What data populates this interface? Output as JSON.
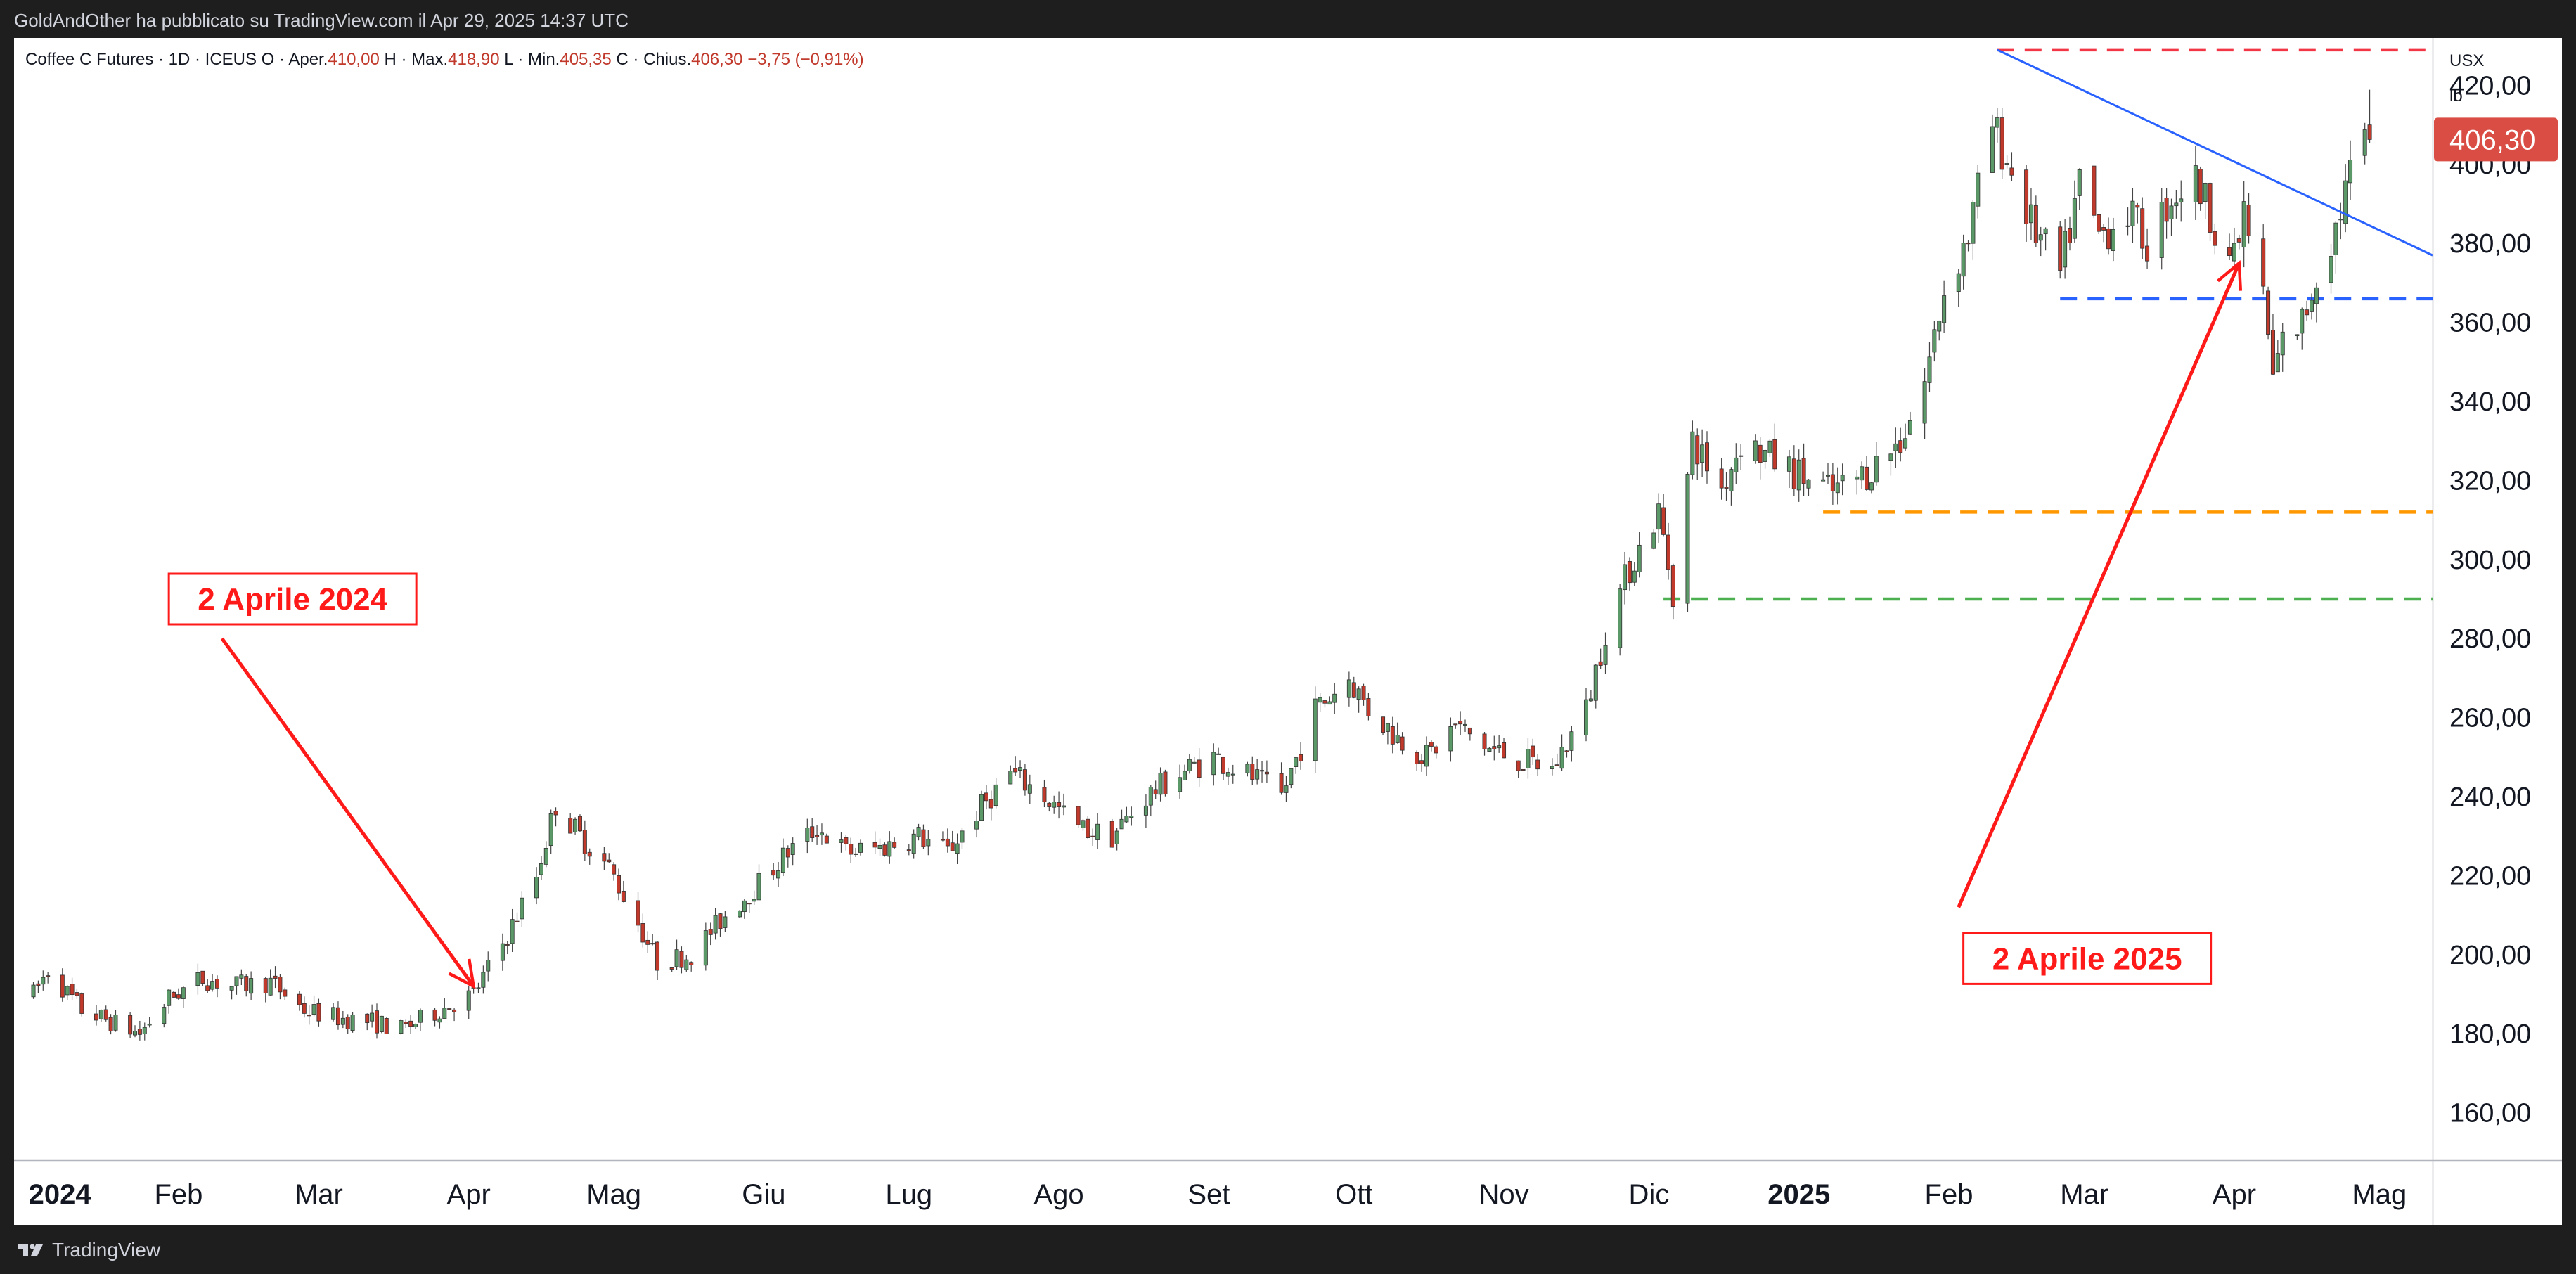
{
  "header": {
    "published_text": "GoldAndOther ha pubblicato su TradingView.com il Apr 29, 2025 14:37 UTC"
  },
  "footer": {
    "brand": "TradingView",
    "logo_icon": "tradingview-logo-icon"
  },
  "chart_data": {
    "type": "candlestick",
    "title": "Coffee C Futures · 1D · ICEUS",
    "ohlc": {
      "open_label": "O",
      "open_name": "Aper.",
      "open": "410,00",
      "high_label": "H",
      "high_name": "Max.",
      "high": "418,90",
      "low_label": "L",
      "low_name": "Min.",
      "low": "405,35",
      "close_label": "C",
      "close_name": "Chius.",
      "close": "406,30",
      "change": "−3,75 (−0,91%)"
    },
    "currency": "USX",
    "unit": "lb",
    "last_price": "406,30",
    "ylim": [
      148,
      432
    ],
    "y_ticks": [
      "160,00",
      "180,00",
      "200,00",
      "220,00",
      "240,00",
      "260,00",
      "280,00",
      "300,00",
      "320,00",
      "340,00",
      "360,00",
      "380,00",
      "400,00",
      "420,00"
    ],
    "x_labels": [
      {
        "label": "2024",
        "date": "2024-01-01",
        "bold": true
      },
      {
        "label": "Feb",
        "date": "2024-02-01"
      },
      {
        "label": "Mar",
        "date": "2024-03-01"
      },
      {
        "label": "Apr",
        "date": "2024-04-01"
      },
      {
        "label": "Mag",
        "date": "2024-05-01"
      },
      {
        "label": "Giu",
        "date": "2024-06-01"
      },
      {
        "label": "Lug",
        "date": "2024-07-01"
      },
      {
        "label": "Ago",
        "date": "2024-08-01"
      },
      {
        "label": "Set",
        "date": "2024-09-01"
      },
      {
        "label": "Ott",
        "date": "2024-10-01"
      },
      {
        "label": "Nov",
        "date": "2024-11-01"
      },
      {
        "label": "Dic",
        "date": "2024-12-01"
      },
      {
        "label": "2025",
        "date": "2025-01-01",
        "bold": true
      },
      {
        "label": "Feb",
        "date": "2025-02-01"
      },
      {
        "label": "Mar",
        "date": "2025-03-01"
      },
      {
        "label": "Apr",
        "date": "2025-04-01"
      },
      {
        "label": "Mag",
        "date": "2025-05-01"
      }
    ],
    "x_range": [
      "2023-12-29",
      "2025-05-12"
    ],
    "candle_colors": {
      "up": "#5b9a68",
      "down": "#c0392b"
    },
    "price_path": [
      [
        "2024-01-02",
        190
      ],
      [
        "2024-01-05",
        196
      ],
      [
        "2024-01-12",
        186
      ],
      [
        "2024-01-18",
        183
      ],
      [
        "2024-01-24",
        180
      ],
      [
        "2024-01-30",
        189
      ],
      [
        "2024-02-06",
        194
      ],
      [
        "2024-02-12",
        192
      ],
      [
        "2024-02-20",
        193
      ],
      [
        "2024-02-27",
        186
      ],
      [
        "2024-03-05",
        184
      ],
      [
        "2024-03-12",
        183
      ],
      [
        "2024-03-18",
        181
      ],
      [
        "2024-03-26",
        186
      ],
      [
        "2024-04-02",
        190
      ],
      [
        "2024-04-09",
        205
      ],
      [
        "2024-04-15",
        220
      ],
      [
        "2024-04-19",
        238
      ],
      [
        "2024-04-24",
        230
      ],
      [
        "2024-04-30",
        222
      ],
      [
        "2024-05-06",
        208
      ],
      [
        "2024-05-10",
        198
      ],
      [
        "2024-05-17",
        200
      ],
      [
        "2024-05-24",
        210
      ],
      [
        "2024-05-31",
        218
      ],
      [
        "2024-06-06",
        226
      ],
      [
        "2024-06-12",
        232
      ],
      [
        "2024-06-18",
        226
      ],
      [
        "2024-06-25",
        227
      ],
      [
        "2024-07-03",
        230
      ],
      [
        "2024-07-09",
        226
      ],
      [
        "2024-07-15",
        236
      ],
      [
        "2024-07-22",
        246
      ],
      [
        "2024-07-29",
        240
      ],
      [
        "2024-08-05",
        232
      ],
      [
        "2024-08-12",
        230
      ],
      [
        "2024-08-19",
        240
      ],
      [
        "2024-08-26",
        246
      ],
      [
        "2024-09-02",
        250
      ],
      [
        "2024-09-10",
        245
      ],
      [
        "2024-09-16",
        240
      ],
      [
        "2024-09-23",
        262
      ],
      [
        "2024-09-30",
        270
      ],
      [
        "2024-10-04",
        262
      ],
      [
        "2024-10-10",
        255
      ],
      [
        "2024-10-16",
        250
      ],
      [
        "2024-10-22",
        258
      ],
      [
        "2024-10-29",
        252
      ],
      [
        "2024-11-05",
        249
      ],
      [
        "2024-11-11",
        247
      ],
      [
        "2024-11-18",
        262
      ],
      [
        "2024-11-22",
        282
      ],
      [
        "2024-11-27",
        298
      ],
      [
        "2024-12-03",
        312
      ],
      [
        "2024-12-06",
        292
      ],
      [
        "2024-12-10",
        330
      ],
      [
        "2024-12-16",
        318
      ],
      [
        "2024-12-20",
        330
      ],
      [
        "2024-12-27",
        325
      ],
      [
        "2025-01-03",
        320
      ],
      [
        "2025-01-08",
        317
      ],
      [
        "2025-01-15",
        322
      ],
      [
        "2025-01-22",
        330
      ],
      [
        "2025-01-27",
        345
      ],
      [
        "2025-01-31",
        368
      ],
      [
        "2025-02-05",
        382
      ],
      [
        "2025-02-10",
        410
      ],
      [
        "2025-02-14",
        398
      ],
      [
        "2025-02-18",
        385
      ],
      [
        "2025-02-24",
        372
      ],
      [
        "2025-02-28",
        395
      ],
      [
        "2025-03-04",
        382
      ],
      [
        "2025-03-10",
        388
      ],
      [
        "2025-03-14",
        380
      ],
      [
        "2025-03-19",
        392
      ],
      [
        "2025-03-24",
        396
      ],
      [
        "2025-03-28",
        385
      ],
      [
        "2025-04-01",
        375
      ],
      [
        "2025-04-03",
        388
      ],
      [
        "2025-04-07",
        366
      ],
      [
        "2025-04-09",
        346
      ],
      [
        "2025-04-11",
        355
      ],
      [
        "2025-04-15",
        360
      ],
      [
        "2025-04-18",
        372
      ],
      [
        "2025-04-22",
        384
      ],
      [
        "2025-04-25",
        398
      ],
      [
        "2025-04-29",
        406.3
      ]
    ],
    "trendline": {
      "from": [
        "2025-02-11",
        429
      ],
      "to": [
        "2025-05-12",
        377
      ],
      "color": "#2962ff"
    },
    "levels": [
      {
        "price": 429,
        "from": "2025-02-11",
        "color": "#f23645"
      },
      {
        "price": 366,
        "from": "2025-02-24",
        "color": "#2962ff"
      },
      {
        "price": 312,
        "from": "2025-01-06",
        "color": "#ff9800"
      },
      {
        "price": 290,
        "from": "2024-12-04",
        "color": "#4caf50"
      }
    ],
    "annotations": [
      {
        "label": "2 Aprile 2024",
        "box_date": "2024-01-30",
        "box_price": 290,
        "arrow_from": [
          "2024-02-10",
          280
        ],
        "arrow_to": [
          "2024-04-02",
          192
        ]
      },
      {
        "label": "2 Aprile 2025",
        "box_date": "2025-02-04",
        "box_price": 199,
        "arrow_from": [
          "2025-02-03",
          212
        ],
        "arrow_to": [
          "2025-04-02",
          375
        ]
      }
    ]
  }
}
